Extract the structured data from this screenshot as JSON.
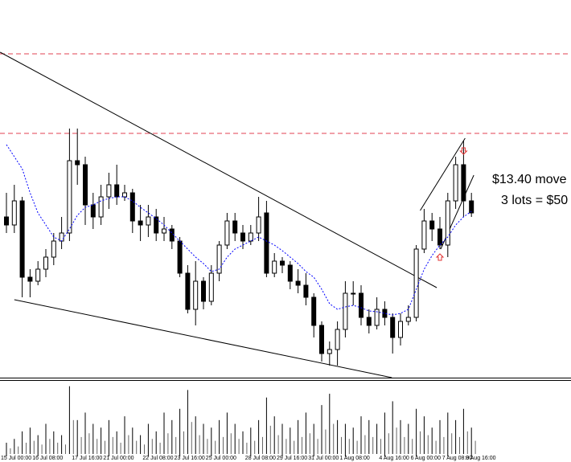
{
  "chart_data": {
    "type": "candlestick",
    "categories": [
      "15 Jul 00:00",
      null,
      null,
      null,
      "16 Jul 08:00",
      null,
      null,
      null,
      null,
      "17 Jul 16:00",
      null,
      null,
      null,
      "21 Jul 00:00",
      null,
      null,
      null,
      null,
      "22 Jul 08:00",
      null,
      null,
      null,
      "23 Jul 16:00",
      null,
      null,
      null,
      "25 Jul 00:00",
      null,
      null,
      null,
      null,
      "28 Jul 08:00",
      null,
      null,
      null,
      "29 Jul 16:00",
      null,
      null,
      null,
      "31 Jul 00:00",
      null,
      null,
      null,
      "1 Aug 08:00",
      null,
      null,
      null,
      null,
      "4 Aug 16:00",
      null,
      null,
      null,
      "6 Aug 00:00",
      null,
      null,
      null,
      "7 Aug 08:00",
      null,
      null,
      "8 Aug 16:00"
    ],
    "open": [
      200,
      190,
      220,
      125,
      120,
      135,
      150,
      170,
      180,
      270,
      265,
      215,
      200,
      225,
      240,
      225,
      230,
      195,
      190,
      200,
      180,
      185,
      170,
      130,
      85,
      120,
      95,
      130,
      165,
      195,
      180,
      170,
      180,
      205,
      130,
      145,
      140,
      120,
      115,
      100,
      65,
      30,
      35,
      60,
      105,
      105,
      75,
      65,
      85,
      75,
      50,
      70,
      75,
      160,
      195,
      185,
      165,
      220,
      265,
      220
    ],
    "high": [
      230,
      240,
      225,
      135,
      145,
      160,
      180,
      200,
      310,
      310,
      275,
      230,
      240,
      255,
      265,
      240,
      235,
      215,
      215,
      210,
      200,
      190,
      175,
      140,
      145,
      125,
      140,
      170,
      205,
      205,
      190,
      190,
      225,
      220,
      155,
      150,
      145,
      135,
      130,
      105,
      70,
      45,
      70,
      120,
      120,
      115,
      85,
      100,
      95,
      80,
      80,
      90,
      165,
      210,
      205,
      200,
      230,
      275,
      295,
      230
    ],
    "low": [
      180,
      180,
      100,
      100,
      115,
      125,
      140,
      160,
      170,
      240,
      190,
      185,
      190,
      210,
      215,
      220,
      180,
      170,
      175,
      170,
      170,
      160,
      125,
      80,
      65,
      85,
      90,
      120,
      160,
      170,
      160,
      165,
      170,
      125,
      125,
      130,
      110,
      105,
      90,
      50,
      20,
      15,
      15,
      50,
      90,
      65,
      55,
      60,
      65,
      30,
      40,
      65,
      70,
      155,
      170,
      160,
      150,
      210,
      200,
      200
    ],
    "close": [
      190,
      220,
      125,
      120,
      135,
      150,
      170,
      180,
      270,
      265,
      215,
      200,
      225,
      240,
      225,
      230,
      195,
      190,
      200,
      180,
      185,
      170,
      130,
      85,
      120,
      95,
      130,
      165,
      195,
      180,
      170,
      180,
      200,
      130,
      145,
      140,
      120,
      115,
      100,
      65,
      30,
      35,
      60,
      105,
      105,
      75,
      65,
      85,
      75,
      50,
      70,
      75,
      160,
      195,
      185,
      165,
      220,
      265,
      220,
      205
    ],
    "ma": [
      290,
      275,
      260,
      230,
      205,
      190,
      175,
      170,
      185,
      202,
      212,
      215,
      220,
      223,
      225,
      225,
      220,
      212,
      205,
      198,
      190,
      180,
      170,
      160,
      150,
      142,
      132,
      135,
      150,
      160,
      165,
      170,
      175,
      170,
      165,
      158,
      150,
      142,
      132,
      125,
      110,
      92,
      85,
      88,
      90,
      87,
      83,
      82,
      80,
      78,
      80,
      85,
      110,
      135,
      152,
      165,
      175,
      190,
      200,
      207
    ],
    "ma_color": "#0000ff",
    "volume": [
      15,
      20,
      30,
      35,
      25,
      40,
      30,
      25,
      90,
      45,
      55,
      40,
      35,
      45,
      30,
      50,
      35,
      25,
      40,
      30,
      55,
      45,
      60,
      85,
      50,
      40,
      35,
      45,
      55,
      40,
      30,
      35,
      45,
      75,
      50,
      40,
      35,
      45,
      55,
      40,
      65,
      80,
      45,
      40,
      35,
      50,
      45,
      40,
      55,
      70,
      45,
      40,
      60,
      50,
      35,
      45,
      55,
      45,
      60,
      35
    ],
    "ylim": [
      0,
      470
    ],
    "volume_ylim": [
      0,
      95
    ],
    "levels": [
      403,
      304
    ],
    "level_color": "#e04050",
    "trendlines": [
      {
        "x": [
          -0.8,
          54.6
        ],
        "y": [
          405,
          112
        ]
      },
      {
        "x": [
          1,
          48.9
        ],
        "y": [
          97,
          0
        ]
      },
      {
        "x": [
          52.5,
          58.2
        ],
        "y": [
          208,
          298
        ]
      },
      {
        "x": [
          55.1,
          59.3
        ],
        "y": [
          160,
          252
        ]
      }
    ],
    "arrows": [
      {
        "index": 58,
        "value": 282,
        "dir": "down"
      },
      {
        "index": 55,
        "value": 150,
        "dir": "up"
      }
    ],
    "arrow_color": "#e03030",
    "annotations": [
      "$13.40 move",
      "3 lots = $50"
    ]
  }
}
